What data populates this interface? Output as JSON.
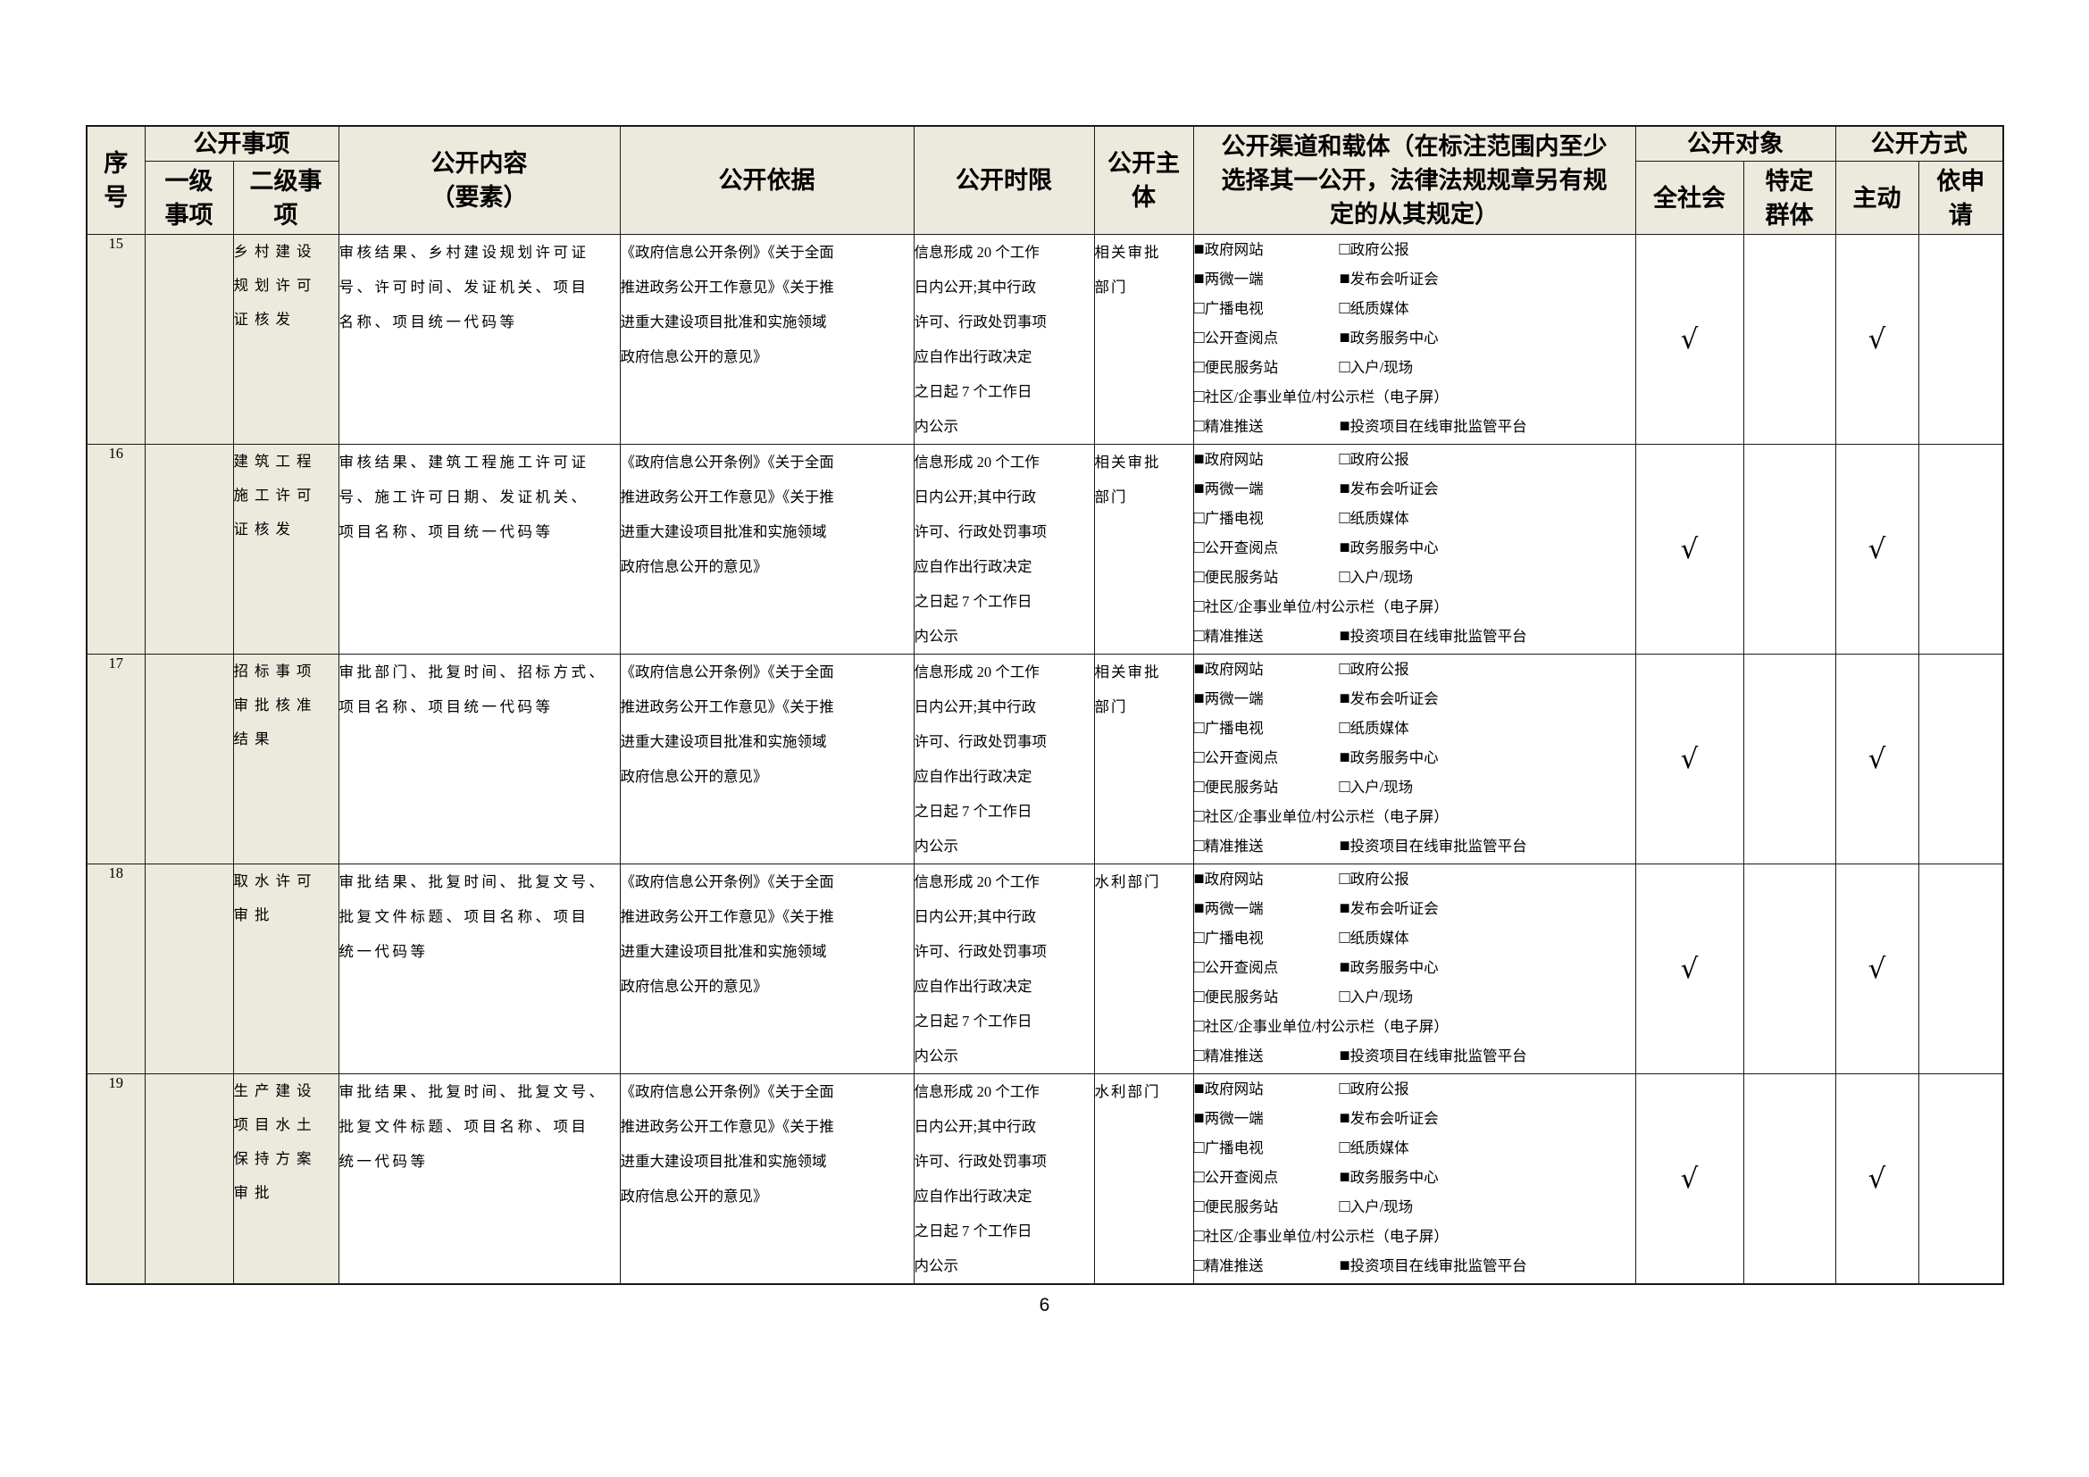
{
  "page": {
    "number": "6"
  },
  "colors": {
    "shaded_cell": "#ece9dd",
    "border": "#1a1a1a",
    "text": "#000000",
    "page_bg": "#ffffff"
  },
  "header": {
    "serial": "序\n号",
    "matter_group": "公开事项",
    "level1": "一级\n事项",
    "level2": "二级事\n项",
    "content": "公开内容\n（要素）",
    "basis": "公开依据",
    "time_limit": "公开时限",
    "subject": "公开主\n体",
    "channels": "公开渠道和载体（在标注范围内至少\n选择其一公开，法律法规规章另有规\n定的从其规定）",
    "audience_group": "公开对象",
    "audience_all": "全社会",
    "audience_specific": "特定\n群体",
    "method_group": "公开方式",
    "method_active": "主动",
    "method_on_request": "依申\n请"
  },
  "rows": [
    {
      "no": "15",
      "level1": "",
      "level2": "乡村建设\n规划许可\n证核发",
      "content": "审核结果、乡村建设规划许可证\n号、许可时间、发证机关、项目\n名称、项目统一代码等",
      "basis": "《政府信息公开条例》《关于全面\n推进政务公开工作意见》《关于推\n进重大建设项目批准和实施领域\n政府信息公开的意见》",
      "time_limit": "信息形成 20 个工作\n日内公开;其中行政\n许可、行政处罚事项\n应自作出行政决定\n之日起 7 个工作日\n内公示",
      "subject": "相关审批\n部门",
      "channels": [
        {
          "items": [
            {
              "checked": true,
              "label": "政府网站"
            },
            {
              "checked": false,
              "label": "政府公报"
            }
          ]
        },
        {
          "items": [
            {
              "checked": true,
              "label": "两微一端"
            },
            {
              "checked": true,
              "label": "发布会听证会"
            }
          ]
        },
        {
          "items": [
            {
              "checked": false,
              "label": "广播电视"
            },
            {
              "checked": false,
              "label": "纸质媒体"
            }
          ]
        },
        {
          "items": [
            {
              "checked": false,
              "label": "公开查阅点"
            },
            {
              "checked": true,
              "label": "政务服务中心"
            }
          ]
        },
        {
          "items": [
            {
              "checked": false,
              "label": "便民服务站"
            },
            {
              "checked": false,
              "label": "入户/现场"
            }
          ]
        },
        {
          "items": [
            {
              "checked": false,
              "label": "社区/企事业单位/村公示栏（电子屏）"
            }
          ],
          "full": true
        },
        {
          "items": [
            {
              "checked": false,
              "label": "精准推送"
            },
            {
              "checked": true,
              "label": "投资项目在线审批监管平台"
            }
          ]
        }
      ],
      "marks": {
        "society": "√",
        "specific": "",
        "active": "√",
        "on_request": ""
      }
    },
    {
      "no": "16",
      "level1": "",
      "level2": "建筑工程\n施工许可\n证核发",
      "content": "审核结果、建筑工程施工许可证\n号、施工许可日期、发证机关、\n项目名称、项目统一代码等",
      "basis": "《政府信息公开条例》《关于全面\n推进政务公开工作意见》《关于推\n进重大建设项目批准和实施领域\n政府信息公开的意见》",
      "time_limit": "信息形成 20 个工作\n日内公开;其中行政\n许可、行政处罚事项\n应自作出行政决定\n之日起 7 个工作日\n内公示",
      "subject": "相关审批\n部门",
      "channels": [
        {
          "items": [
            {
              "checked": true,
              "label": "政府网站"
            },
            {
              "checked": false,
              "label": "政府公报"
            }
          ]
        },
        {
          "items": [
            {
              "checked": true,
              "label": "两微一端"
            },
            {
              "checked": true,
              "label": "发布会听证会"
            }
          ]
        },
        {
          "items": [
            {
              "checked": false,
              "label": "广播电视"
            },
            {
              "checked": false,
              "label": "纸质媒体"
            }
          ]
        },
        {
          "items": [
            {
              "checked": false,
              "label": "公开查阅点"
            },
            {
              "checked": true,
              "label": "政务服务中心"
            }
          ]
        },
        {
          "items": [
            {
              "checked": false,
              "label": "便民服务站"
            },
            {
              "checked": false,
              "label": "入户/现场"
            }
          ]
        },
        {
          "items": [
            {
              "checked": false,
              "label": "社区/企事业单位/村公示栏（电子屏）"
            }
          ],
          "full": true
        },
        {
          "items": [
            {
              "checked": false,
              "label": "精准推送"
            },
            {
              "checked": true,
              "label": "投资项目在线审批监管平台"
            }
          ]
        }
      ],
      "marks": {
        "society": "√",
        "specific": "",
        "active": "√",
        "on_request": ""
      }
    },
    {
      "no": "17",
      "level1": "",
      "level2": "招标事项\n审批核准\n结果",
      "content": "审批部门、批复时间、招标方式、\n项目名称、项目统一代码等",
      "basis": "《政府信息公开条例》《关于全面\n推进政务公开工作意见》《关于推\n进重大建设项目批准和实施领域\n政府信息公开的意见》",
      "time_limit": "信息形成 20 个工作\n日内公开;其中行政\n许可、行政处罚事项\n应自作出行政决定\n之日起 7 个工作日\n内公示",
      "subject": "相关审批\n部门",
      "channels": [
        {
          "items": [
            {
              "checked": true,
              "label": "政府网站"
            },
            {
              "checked": false,
              "label": "政府公报"
            }
          ]
        },
        {
          "items": [
            {
              "checked": true,
              "label": "两微一端"
            },
            {
              "checked": true,
              "label": "发布会听证会"
            }
          ]
        },
        {
          "items": [
            {
              "checked": false,
              "label": "广播电视"
            },
            {
              "checked": false,
              "label": "纸质媒体"
            }
          ]
        },
        {
          "items": [
            {
              "checked": false,
              "label": "公开查阅点"
            },
            {
              "checked": true,
              "label": "政务服务中心"
            }
          ]
        },
        {
          "items": [
            {
              "checked": false,
              "label": "便民服务站"
            },
            {
              "checked": false,
              "label": "入户/现场"
            }
          ]
        },
        {
          "items": [
            {
              "checked": false,
              "label": "社区/企事业单位/村公示栏（电子屏）"
            }
          ],
          "full": true
        },
        {
          "items": [
            {
              "checked": false,
              "label": "精准推送"
            },
            {
              "checked": true,
              "label": "投资项目在线审批监管平台"
            }
          ]
        }
      ],
      "marks": {
        "society": "√",
        "specific": "",
        "active": "√",
        "on_request": ""
      }
    },
    {
      "no": "18",
      "level1": "",
      "level2": "取水许可\n审批",
      "content": "审批结果、批复时间、批复文号、\n批复文件标题、项目名称、项目\n统一代码等",
      "basis": "《政府信息公开条例》《关于全面\n推进政务公开工作意见》《关于推\n进重大建设项目批准和实施领域\n政府信息公开的意见》",
      "time_limit": "信息形成 20 个工作\n日内公开;其中行政\n许可、行政处罚事项\n应自作出行政决定\n之日起 7 个工作日\n内公示",
      "subject": "水利部门",
      "channels": [
        {
          "items": [
            {
              "checked": true,
              "label": "政府网站"
            },
            {
              "checked": false,
              "label": "政府公报"
            }
          ]
        },
        {
          "items": [
            {
              "checked": true,
              "label": "两微一端"
            },
            {
              "checked": true,
              "label": "发布会听证会"
            }
          ]
        },
        {
          "items": [
            {
              "checked": false,
              "label": "广播电视"
            },
            {
              "checked": false,
              "label": "纸质媒体"
            }
          ]
        },
        {
          "items": [
            {
              "checked": false,
              "label": "公开查阅点"
            },
            {
              "checked": true,
              "label": "政务服务中心"
            }
          ]
        },
        {
          "items": [
            {
              "checked": false,
              "label": "便民服务站"
            },
            {
              "checked": false,
              "label": "入户/现场"
            }
          ]
        },
        {
          "items": [
            {
              "checked": false,
              "label": "社区/企事业单位/村公示栏（电子屏）"
            }
          ],
          "full": true
        },
        {
          "items": [
            {
              "checked": false,
              "label": "精准推送"
            },
            {
              "checked": true,
              "label": "投资项目在线审批监管平台"
            }
          ]
        }
      ],
      "marks": {
        "society": "√",
        "specific": "",
        "active": "√",
        "on_request": ""
      }
    },
    {
      "no": "19",
      "level1": "",
      "level2": "生产建设\n项目水土\n保持方案\n审批",
      "content": "审批结果、批复时间、批复文号、\n批复文件标题、项目名称、项目\n统一代码等",
      "basis": "《政府信息公开条例》《关于全面\n推进政务公开工作意见》《关于推\n进重大建设项目批准和实施领域\n政府信息公开的意见》",
      "time_limit": "信息形成 20 个工作\n日内公开;其中行政\n许可、行政处罚事项\n应自作出行政决定\n之日起 7 个工作日\n内公示",
      "subject": "水利部门",
      "channels": [
        {
          "items": [
            {
              "checked": true,
              "label": "政府网站"
            },
            {
              "checked": false,
              "label": "政府公报"
            }
          ]
        },
        {
          "items": [
            {
              "checked": true,
              "label": "两微一端"
            },
            {
              "checked": true,
              "label": "发布会听证会"
            }
          ]
        },
        {
          "items": [
            {
              "checked": false,
              "label": "广播电视"
            },
            {
              "checked": false,
              "label": "纸质媒体"
            }
          ]
        },
        {
          "items": [
            {
              "checked": false,
              "label": "公开查阅点"
            },
            {
              "checked": true,
              "label": "政务服务中心"
            }
          ]
        },
        {
          "items": [
            {
              "checked": false,
              "label": "便民服务站"
            },
            {
              "checked": false,
              "label": "入户/现场"
            }
          ]
        },
        {
          "items": [
            {
              "checked": false,
              "label": "社区/企事业单位/村公示栏（电子屏）"
            }
          ],
          "full": true
        },
        {
          "items": [
            {
              "checked": false,
              "label": "精准推送"
            },
            {
              "checked": true,
              "label": "投资项目在线审批监管平台"
            }
          ]
        }
      ],
      "marks": {
        "society": "√",
        "specific": "",
        "active": "√",
        "on_request": ""
      }
    }
  ]
}
